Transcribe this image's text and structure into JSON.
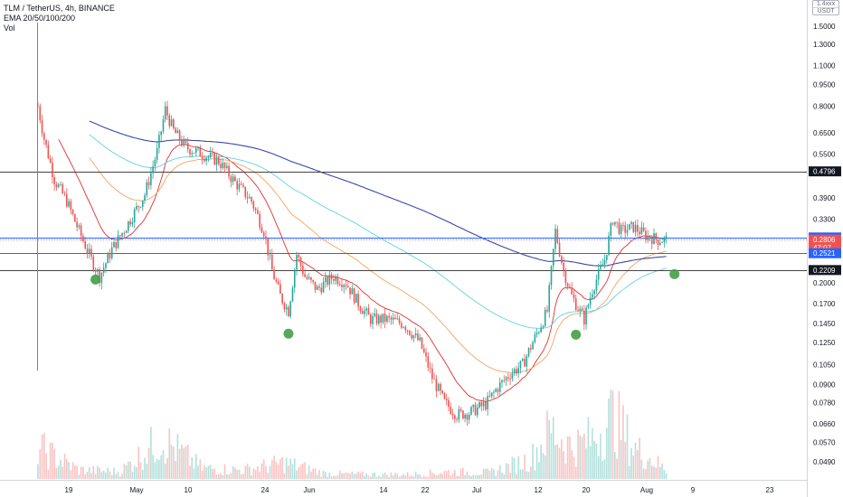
{
  "header": {
    "symbol_line": "TLM / TetherUS, 4h, BINANCE",
    "ema_line": "EMA 20/50/100/200",
    "vol_line": "Vol"
  },
  "quote_box": {
    "top": "1.4xxx",
    "currency": "USDT"
  },
  "colors": {
    "up": "#26a69a",
    "down": "#ef5350",
    "ema20": "#e03030",
    "ema50": "#f4a460",
    "ema100": "#5fd3e6",
    "ema200": "#3949ab",
    "blue_line": "#2962ff",
    "gray_line": "#444444",
    "pivot": "#43a047"
  },
  "chart_data": {
    "type": "candlestick",
    "scale": "log",
    "yaxis_ticks": [
      "1.5000",
      "1.3000",
      "1.1000",
      "0.9500",
      "0.8000",
      "0.6500",
      "0.5500",
      "0.4796",
      "0.3900",
      "0.3300",
      "0.2854",
      "0.2806",
      "0.2521",
      "0.2209",
      "0.2000",
      "0.1700",
      "0.1450",
      "0.1250",
      "0.1050",
      "0.0900",
      "0.0780",
      "0.0660",
      "0.0570",
      "0.0490"
    ],
    "xaxis_ticks": [
      "19",
      "May",
      "10",
      "24",
      "Jun",
      "14",
      "22",
      "Jul",
      "12",
      "20",
      "Aug",
      "9",
      "23"
    ],
    "price_labels": [
      {
        "value": "0.4796",
        "style": "dark"
      },
      {
        "value": "0.2854",
        "style": "blue"
      },
      {
        "value": "0.2806",
        "sub": "47:07",
        "style": "red"
      },
      {
        "value": "0.2521",
        "style": "blue"
      },
      {
        "value": "0.2209",
        "style": "dark"
      }
    ],
    "horizontal_levels": [
      {
        "value": 0.4796,
        "color": "gray"
      },
      {
        "value": 0.2854,
        "color": "blue"
      },
      {
        "value": 0.2521,
        "color": "blue"
      },
      {
        "value": 0.2209,
        "color": "gray"
      }
    ],
    "current_price": 0.2806,
    "price_path": [
      [
        0,
        0.8
      ],
      [
        3,
        0.62
      ],
      [
        8,
        0.45
      ],
      [
        14,
        0.38
      ],
      [
        20,
        0.3
      ],
      [
        26,
        0.24
      ],
      [
        30,
        0.21
      ],
      [
        36,
        0.26
      ],
      [
        44,
        0.32
      ],
      [
        52,
        0.4
      ],
      [
        58,
        0.56
      ],
      [
        62,
        0.78
      ],
      [
        66,
        0.66
      ],
      [
        72,
        0.58
      ],
      [
        80,
        0.55
      ],
      [
        88,
        0.52
      ],
      [
        96,
        0.44
      ],
      [
        104,
        0.38
      ],
      [
        110,
        0.3
      ],
      [
        114,
        0.22
      ],
      [
        118,
        0.18
      ],
      [
        122,
        0.16
      ],
      [
        126,
        0.25
      ],
      [
        130,
        0.21
      ],
      [
        136,
        0.19
      ],
      [
        144,
        0.21
      ],
      [
        150,
        0.2
      ],
      [
        156,
        0.17
      ],
      [
        162,
        0.15
      ],
      [
        170,
        0.15
      ],
      [
        178,
        0.145
      ],
      [
        186,
        0.125
      ],
      [
        192,
        0.095
      ],
      [
        198,
        0.078
      ],
      [
        204,
        0.071
      ],
      [
        210,
        0.072
      ],
      [
        218,
        0.077
      ],
      [
        224,
        0.088
      ],
      [
        230,
        0.098
      ],
      [
        236,
        0.105
      ],
      [
        242,
        0.13
      ],
      [
        248,
        0.16
      ],
      [
        252,
        0.3
      ],
      [
        256,
        0.22
      ],
      [
        260,
        0.18
      ],
      [
        266,
        0.15
      ],
      [
        270,
        0.19
      ],
      [
        276,
        0.24
      ],
      [
        280,
        0.33
      ],
      [
        284,
        0.3
      ],
      [
        290,
        0.31
      ],
      [
        296,
        0.29
      ],
      [
        302,
        0.28
      ],
      [
        306,
        0.2806
      ]
    ],
    "volume_path": [
      [
        0,
        0.35
      ],
      [
        20,
        0.1
      ],
      [
        40,
        0.08
      ],
      [
        60,
        0.45
      ],
      [
        80,
        0.12
      ],
      [
        100,
        0.1
      ],
      [
        120,
        0.18
      ],
      [
        140,
        0.06
      ],
      [
        160,
        0.05
      ],
      [
        180,
        0.05
      ],
      [
        200,
        0.08
      ],
      [
        220,
        0.07
      ],
      [
        240,
        0.22
      ],
      [
        250,
        0.55
      ],
      [
        260,
        0.35
      ],
      [
        270,
        0.45
      ],
      [
        280,
        0.7
      ],
      [
        290,
        0.35
      ],
      [
        300,
        0.2
      ],
      [
        306,
        0.1
      ]
    ],
    "pivot_markers": [
      {
        "bar": 28,
        "value": 0.205
      },
      {
        "bar": 122,
        "value": 0.134
      },
      {
        "bar": 262,
        "value": 0.133
      },
      {
        "bar": 310,
        "value": 0.214
      }
    ]
  }
}
